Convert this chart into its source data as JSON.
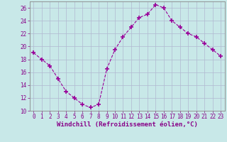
{
  "x": [
    0,
    1,
    2,
    3,
    4,
    5,
    6,
    7,
    8,
    9,
    10,
    11,
    12,
    13,
    14,
    15,
    16,
    17,
    18,
    19,
    20,
    21,
    22,
    23
  ],
  "y": [
    19,
    18,
    17,
    15,
    13,
    12,
    11,
    10.5,
    11,
    16.5,
    19.5,
    21.5,
    23,
    24.5,
    25,
    26.5,
    26,
    24,
    23,
    22,
    21.5,
    20.5,
    19.5,
    18.5
  ],
  "line_color": "#990099",
  "marker": "+",
  "marker_size": 4,
  "background_color": "#c8e8e8",
  "grid_color": "#b0b8d0",
  "xlabel": "Windchill (Refroidissement éolien,°C)",
  "ylim": [
    10,
    27
  ],
  "xlim": [
    -0.5,
    23.5
  ],
  "yticks": [
    10,
    12,
    14,
    16,
    18,
    20,
    22,
    24,
    26
  ],
  "xticks": [
    0,
    1,
    2,
    3,
    4,
    5,
    6,
    7,
    8,
    9,
    10,
    11,
    12,
    13,
    14,
    15,
    16,
    17,
    18,
    19,
    20,
    21,
    22,
    23
  ],
  "tick_color": "#880088",
  "label_color": "#880088",
  "tick_fontsize": 5.5,
  "xlabel_fontsize": 6.5
}
